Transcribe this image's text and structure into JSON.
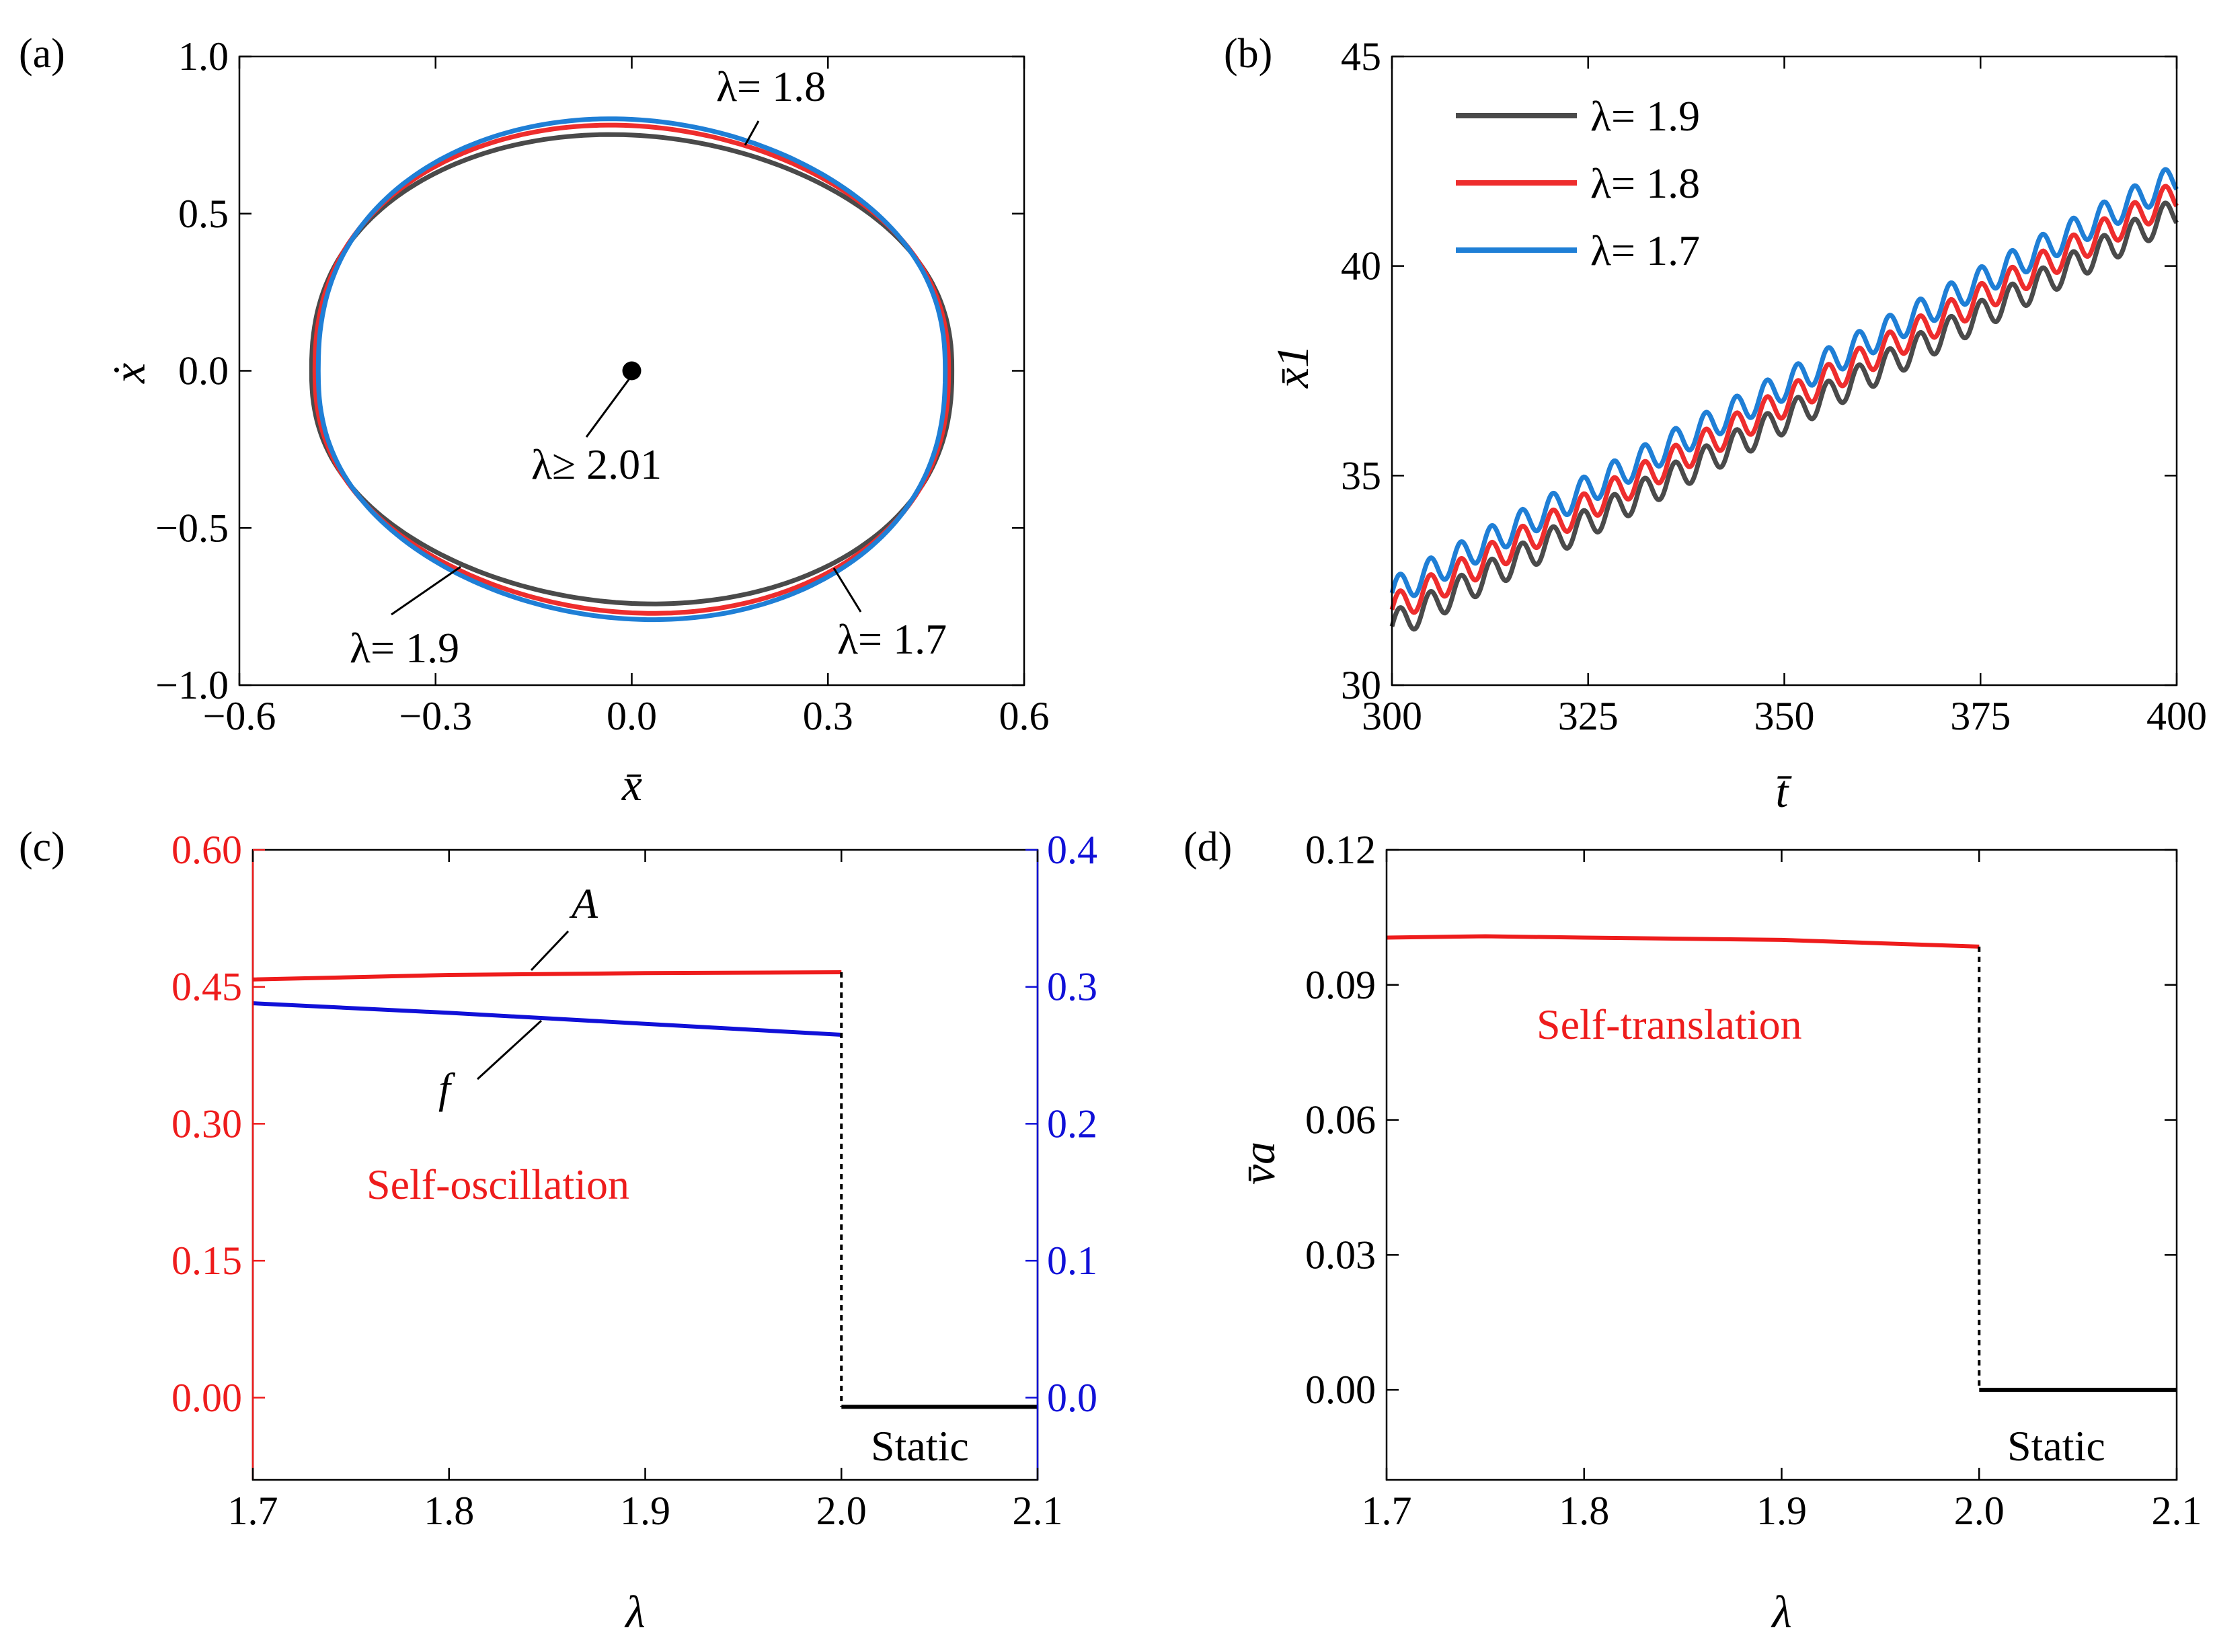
{
  "chart_data": [
    {
      "panel": "(a)",
      "type": "line",
      "title": "",
      "xlabel": "x̄",
      "ylabel": "ẋ",
      "xlim": [
        -0.6,
        0.6
      ],
      "ylim": [
        -1.0,
        1.0
      ],
      "xticks": [
        -0.6,
        -0.3,
        0.0,
        0.3,
        0.6
      ],
      "xtick_labels": [
        "−0.6",
        "−0.3",
        "0.0",
        "0.3",
        "0.6"
      ],
      "yticks": [
        -1.0,
        -0.5,
        0.0,
        0.5,
        1.0
      ],
      "ytick_labels": [
        "−1.0",
        "−0.5",
        "0.0",
        "0.5",
        "1.0"
      ],
      "series": [
        {
          "name": "λ= 1.9",
          "color": "#4a4a4a",
          "amplitude": 0.48,
          "top_velocity": 0.75,
          "bottom_velocity": -0.74
        },
        {
          "name": "λ= 1.8",
          "color": "#ee2d2d",
          "amplitude": 0.475,
          "top_velocity": 0.78,
          "bottom_velocity": -0.77
        },
        {
          "name": "λ= 1.7",
          "color": "#1f7fd6",
          "amplitude": 0.47,
          "top_velocity": 0.8,
          "bottom_velocity": -0.79
        }
      ],
      "points": [
        {
          "label": "λ≥ 2.01",
          "x": 0.0,
          "y": 0.0,
          "color": "#000000"
        }
      ],
      "annotations": [
        "λ= 1.8",
        "λ= 1.9",
        "λ= 1.7",
        "λ≥ 2.01"
      ]
    },
    {
      "panel": "(b)",
      "type": "line",
      "title": "",
      "xlabel": "t̄",
      "ylabel": "x̄1",
      "xlim": [
        300,
        400
      ],
      "ylim": [
        30,
        45
      ],
      "xticks": [
        300,
        325,
        350,
        375,
        400
      ],
      "xtick_labels": [
        "300",
        "325",
        "350",
        "375",
        "400"
      ],
      "yticks": [
        30,
        35,
        40,
        45
      ],
      "ytick_labels": [
        "30",
        "35",
        "40",
        "45"
      ],
      "legend": "top-left",
      "series": [
        {
          "name": "λ= 1.9",
          "color": "#4a4a4a",
          "start": 31.4,
          "end": 41.3,
          "osc_amplitude": 0.35,
          "period": 3.9
        },
        {
          "name": "λ= 1.8",
          "color": "#ee2d2d",
          "start": 31.8,
          "end": 41.7,
          "osc_amplitude": 0.35,
          "period": 3.9
        },
        {
          "name": "λ= 1.7",
          "color": "#1f7fd6",
          "start": 32.2,
          "end": 42.1,
          "osc_amplitude": 0.35,
          "period": 3.9
        }
      ]
    },
    {
      "panel": "(c)",
      "type": "line",
      "title": "",
      "xlabel": "λ",
      "ylabel": "",
      "xlim": [
        1.7,
        2.1
      ],
      "ylim": [
        -0.09,
        0.6
      ],
      "y2lim": [
        -0.06,
        0.4
      ],
      "xticks": [
        1.7,
        1.8,
        1.9,
        2.0,
        2.1
      ],
      "xtick_labels": [
        "1.7",
        "1.8",
        "1.9",
        "2.0",
        "2.1"
      ],
      "yticks": [
        0.0,
        0.15,
        0.3,
        0.45,
        0.6
      ],
      "ytick_labels": [
        "0.00",
        "0.15",
        "0.30",
        "0.45",
        "0.60"
      ],
      "y2ticks": [
        0.0,
        0.1,
        0.2,
        0.3,
        0.4
      ],
      "y2tick_labels": [
        "0.0",
        "0.1",
        "0.2",
        "0.3",
        "0.4"
      ],
      "left_axis_color": "#ee1c1c",
      "right_axis_color": "#1010d8",
      "series": [
        {
          "name": "A",
          "axis": "left",
          "color": "#ee1c1c",
          "x": [
            1.7,
            1.8,
            1.9,
            2.0
          ],
          "y": [
            0.458,
            0.463,
            0.465,
            0.466
          ]
        },
        {
          "name": "f",
          "axis": "right",
          "color": "#1010d8",
          "x": [
            1.7,
            1.8,
            1.9,
            2.0
          ],
          "y": [
            0.288,
            0.281,
            0.273,
            0.265
          ]
        },
        {
          "name": "Static",
          "axis": "left",
          "color": "#000000",
          "x": [
            2.0,
            2.1
          ],
          "y": [
            -0.01,
            -0.01
          ]
        }
      ],
      "transition_x": 2.0,
      "annotations": [
        "A",
        "f",
        "Self-oscillation",
        "Static"
      ]
    },
    {
      "panel": "(d)",
      "type": "line",
      "title": "",
      "xlabel": "λ",
      "ylabel": "v̄a",
      "xlim": [
        1.7,
        2.1
      ],
      "ylim": [
        -0.02,
        0.12
      ],
      "xticks": [
        1.7,
        1.8,
        1.9,
        2.0,
        2.1
      ],
      "xtick_labels": [
        "1.7",
        "1.8",
        "1.9",
        "2.0",
        "2.1"
      ],
      "yticks": [
        0.0,
        0.03,
        0.06,
        0.09,
        0.12
      ],
      "ytick_labels": [
        "0.00",
        "0.03",
        "0.06",
        "0.09",
        "0.12"
      ],
      "series": [
        {
          "name": "Self-translation",
          "color": "#ee1c1c",
          "x": [
            1.7,
            1.75,
            1.8,
            1.9,
            2.0
          ],
          "y": [
            0.1005,
            0.1008,
            0.1005,
            0.1,
            0.0985
          ]
        },
        {
          "name": "Static",
          "color": "#000000",
          "x": [
            2.0,
            2.1
          ],
          "y": [
            0.0,
            0.0
          ]
        }
      ],
      "transition_x": 2.0,
      "annotations": [
        "Self-translation",
        "Static"
      ]
    }
  ]
}
